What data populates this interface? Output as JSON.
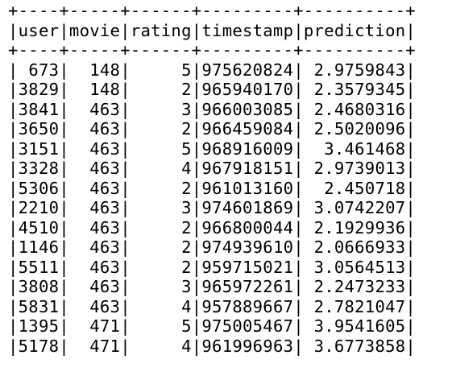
{
  "table": {
    "columns": [
      "user",
      "movie",
      "rating",
      "timestamp",
      "prediction"
    ],
    "column_align": [
      "right",
      "right",
      "right",
      "right",
      "right"
    ],
    "rows": [
      [
        "673",
        "148",
        "5",
        "975620824",
        "2.9759843"
      ],
      [
        "3829",
        "148",
        "2",
        "965940170",
        "2.3579345"
      ],
      [
        "3841",
        "463",
        "3",
        "966003085",
        "2.4680316"
      ],
      [
        "3650",
        "463",
        "2",
        "966459084",
        "2.5020096"
      ],
      [
        "3151",
        "463",
        "5",
        "968916009",
        "3.461468"
      ],
      [
        "3328",
        "463",
        "4",
        "967918151",
        "2.9739013"
      ],
      [
        "5306",
        "463",
        "2",
        "961013160",
        "2.450718"
      ],
      [
        "2210",
        "463",
        "3",
        "974601869",
        "3.0742207"
      ],
      [
        "4510",
        "463",
        "2",
        "966800044",
        "2.1929936"
      ],
      [
        "1146",
        "463",
        "2",
        "974939610",
        "2.0666933"
      ],
      [
        "5511",
        "463",
        "2",
        "959715021",
        "3.0564513"
      ],
      [
        "3808",
        "463",
        "3",
        "965972261",
        "2.2473233"
      ],
      [
        "5831",
        "463",
        "4",
        "957889667",
        "2.7821047"
      ],
      [
        "1395",
        "471",
        "5",
        "975005467",
        "3.9541605"
      ],
      [
        "5178",
        "471",
        "4",
        "961996963",
        "3.6773858"
      ]
    ]
  }
}
